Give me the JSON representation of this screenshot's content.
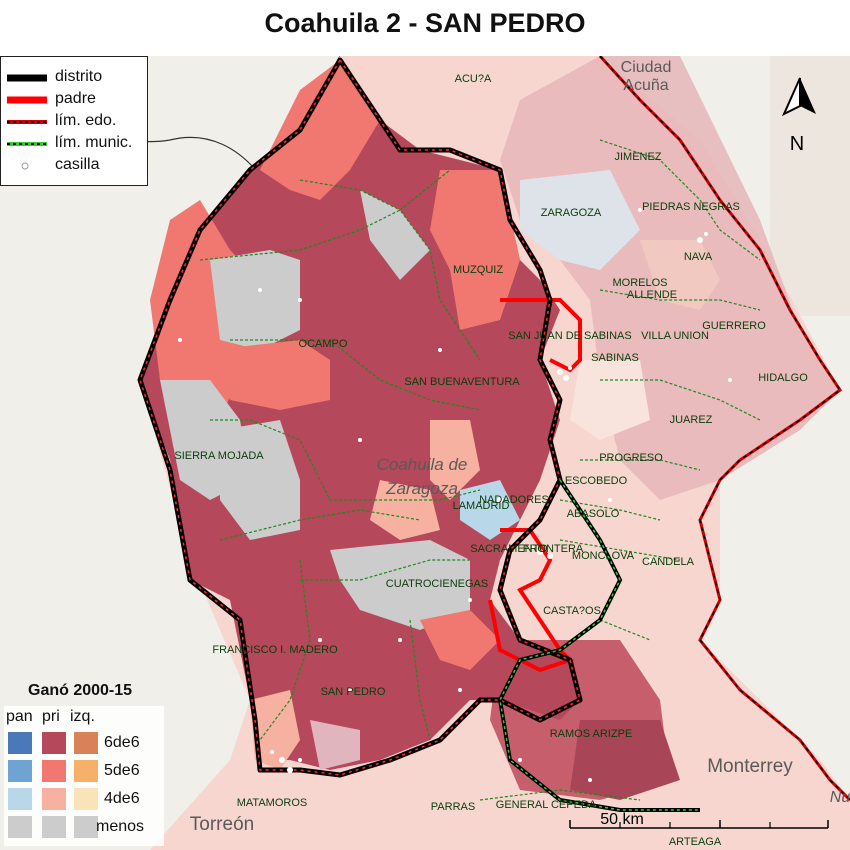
{
  "title": "Coahuila 2 - SAN PEDRO",
  "legend": {
    "items": [
      {
        "label": "distrito",
        "icon": "thick-black-line"
      },
      {
        "label": "padre",
        "icon": "thick-red-line"
      },
      {
        "label": "lím. edo.",
        "icon": "red-black-dashed-line"
      },
      {
        "label": "lím. munic.",
        "icon": "green-black-dashed-line"
      },
      {
        "label": "casilla",
        "icon": "small-circle"
      }
    ]
  },
  "win_legend": {
    "title": "Ganó 2000-15",
    "columns": [
      "pan",
      "pri",
      "izq."
    ],
    "rows": [
      {
        "label": "6de6",
        "colors": [
          "#4a78b8",
          "#b5485a",
          "#d9825a"
        ]
      },
      {
        "label": "5de6",
        "colors": [
          "#6ea3d4",
          "#f07870",
          "#f7b06a"
        ]
      },
      {
        "label": "4de6",
        "colors": [
          "#b8d8ea",
          "#f7b1a0",
          "#fbe3b8"
        ]
      },
      {
        "label": "menos",
        "colors": [
          "#cccccc",
          "#cccccc",
          "#cccccc"
        ]
      }
    ]
  },
  "north_arrow": {
    "label": "N"
  },
  "scalebar": {
    "label": "50 km"
  },
  "municipalities": [
    "ACU?A",
    "JIMENEZ",
    "ZARAGOZA",
    "PIEDRAS NEGRAS",
    "MUZQUIZ",
    "NAVA",
    "MORELOS",
    "ALLENDE",
    "VILLA UNION",
    "GUERRERO",
    "SAN JUAN DE SABINAS",
    "SABINAS",
    "OCAMPO",
    "SAN BUENAVENTURA",
    "HIDALGO",
    "JUAREZ",
    "SIERRA MOJADA",
    "PROGRESO",
    "ESCOBEDO",
    "NADADORES",
    "LAMADRID",
    "ABASOLO",
    "SACRAMENTO",
    "MONCLOVA",
    "FRONTERA",
    "CANDELA",
    "CUATROCIENEGAS",
    "CASTA?OS",
    "FRANCISCO I. MADERO",
    "SAN PEDRO",
    "RAMOS ARIZPE",
    "MATAMOROS",
    "PARRAS",
    "GENERAL CEPEDA",
    "ARTEAGA"
  ],
  "basemap_places": [
    "Ciudad Acuña",
    "Coahuila de Zaragoza",
    "Monterrey",
    "Torreón",
    "Nuevo León"
  ],
  "colors": {
    "district_border": "#000000",
    "parent_border": "#ff0000",
    "state_border": "#cc0000",
    "muni_border": "#22aa22",
    "pri_6de6": "#b5485a",
    "pri_5de6": "#f07870",
    "pri_4de6": "#f7b1a0",
    "menos": "#cccccc"
  }
}
